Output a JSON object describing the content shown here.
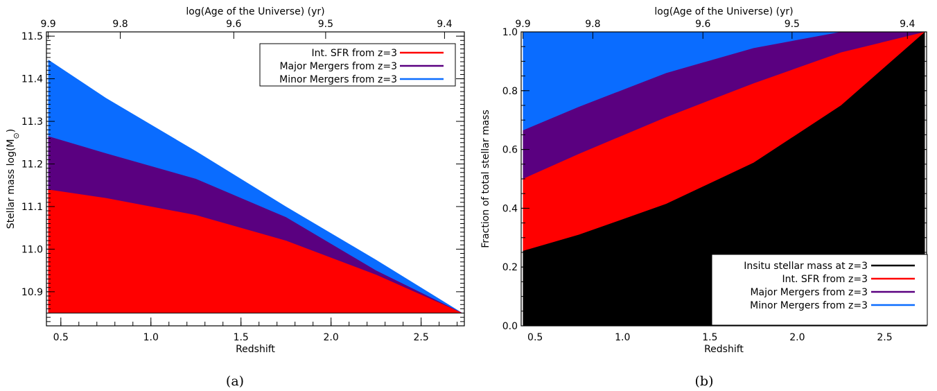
{
  "chart_data": [
    {
      "type": "area",
      "panel_label": "(a)",
      "xlabel": "Redshift",
      "ylabel": "Stellar mass log(M",
      "ylabel_sub": "⊙",
      "ylabel_close": ")",
      "top_xlabel": "log(Age of the Universe) (yr)",
      "xlim": [
        0.42,
        2.74
      ],
      "ylim": [
        10.82,
        11.51
      ],
      "baseline": 10.85,
      "x_ticks": [
        0.5,
        1.0,
        1.5,
        2.0,
        2.5
      ],
      "x_tick_labels": [
        "0.5",
        "1.0",
        "1.5",
        "2.0",
        "2.5"
      ],
      "y_ticks": [
        10.9,
        11.0,
        11.1,
        11.2,
        11.3,
        11.4,
        11.5
      ],
      "y_tick_labels": [
        "10.9",
        "11.0",
        "11.1",
        "11.2",
        "11.3",
        "11.4",
        "11.5"
      ],
      "top_ticks": [
        0.43,
        0.83,
        1.46,
        1.97,
        2.63
      ],
      "top_tick_labels": [
        "9.9",
        "9.8",
        "9.6",
        "9.5",
        "9.4"
      ],
      "x": [
        0.43,
        0.75,
        1.25,
        1.75,
        2.25,
        2.73
      ],
      "series": [
        {
          "name": "Int. SFR from z=3",
          "color": "#ff0000",
          "values": [
            11.14,
            11.12,
            11.08,
            11.02,
            10.94,
            10.85
          ]
        },
        {
          "name": "Major Mergers from z=3",
          "color": "#5a0080",
          "values": [
            11.265,
            11.225,
            11.165,
            11.075,
            10.95,
            10.85
          ]
        },
        {
          "name": "Minor Mergers from z=3",
          "color": "#0a6cff",
          "values": [
            11.445,
            11.355,
            11.23,
            11.1,
            10.975,
            10.85
          ]
        }
      ],
      "legend_position": "top-right"
    },
    {
      "type": "area",
      "panel_label": "(b)",
      "xlabel": "Redshift",
      "ylabel": "Fraction of total stellar mass",
      "top_xlabel": "log(Age of the Universe) (yr)",
      "xlim": [
        0.42,
        2.74
      ],
      "ylim": [
        0.0,
        1.0
      ],
      "baseline": 0.0,
      "x_ticks": [
        0.5,
        1.0,
        1.5,
        2.0,
        2.5
      ],
      "x_tick_labels": [
        "0.5",
        "1.0",
        "1.5",
        "2.0",
        "2.5"
      ],
      "y_ticks": [
        0.0,
        0.2,
        0.4,
        0.6,
        0.8,
        1.0
      ],
      "y_tick_labels": [
        "0.0",
        "0.2",
        "0.4",
        "0.6",
        "0.8",
        "1.0"
      ],
      "top_ticks": [
        0.43,
        0.83,
        1.46,
        1.97,
        2.63
      ],
      "top_tick_labels": [
        "9.9",
        "9.8",
        "9.6",
        "9.5",
        "9.4"
      ],
      "x": [
        0.43,
        0.75,
        1.25,
        1.75,
        2.25,
        2.73
      ],
      "series": [
        {
          "name": "Insitu stellar mass at z=3",
          "color": "#000000",
          "values": [
            0.255,
            0.31,
            0.415,
            0.555,
            0.75,
            1.0
          ]
        },
        {
          "name": "Int. SFR from z=3",
          "color": "#ff0000",
          "values": [
            0.5,
            0.585,
            0.71,
            0.825,
            0.93,
            1.0
          ]
        },
        {
          "name": "Major Mergers from z=3",
          "color": "#5a0080",
          "values": [
            0.665,
            0.745,
            0.86,
            0.945,
            1.0,
            1.0
          ]
        },
        {
          "name": "Minor Mergers from z=3",
          "color": "#0a6cff",
          "values": [
            1.0,
            1.0,
            1.0,
            1.0,
            1.0,
            1.0
          ]
        }
      ],
      "legend_position": "bottom-right"
    }
  ]
}
